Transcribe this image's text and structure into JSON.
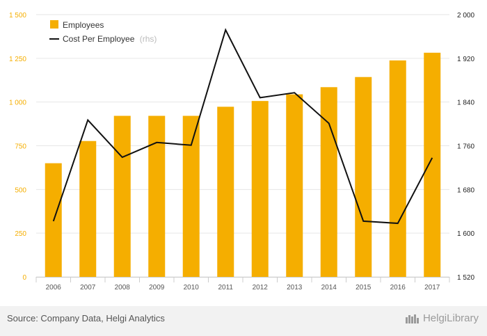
{
  "chart_data": {
    "type": "bar+line",
    "categories": [
      "2006",
      "2007",
      "2008",
      "2009",
      "2010",
      "2011",
      "2012",
      "2013",
      "2014",
      "2015",
      "2016",
      "2017"
    ],
    "series": [
      {
        "name": "Employees",
        "kind": "bar",
        "axis": "left",
        "color": "#f5ae00",
        "values": [
          650,
          777,
          921,
          921,
          921,
          973,
          1006,
          1044,
          1085,
          1143,
          1238,
          1282
        ]
      },
      {
        "name": "Cost Per Employee",
        "kind": "line",
        "axis": "right",
        "color": "#111111",
        "values": [
          1622,
          1807,
          1739,
          1766,
          1761,
          1972,
          1848,
          1857,
          1801,
          1622,
          1618,
          1738
        ]
      }
    ],
    "legend": {
      "position": "top-left",
      "items": [
        {
          "label": "Employees",
          "suffix": ""
        },
        {
          "label": "Cost Per Employee",
          "suffix": "(rhs)"
        }
      ]
    },
    "y_left": {
      "range": [
        0,
        1500
      ],
      "ticks": [
        0,
        250,
        500,
        750,
        1000,
        1250,
        1500
      ],
      "tick_labels": [
        "0",
        "250",
        "500",
        "750",
        "1 000",
        "1 250",
        "1 500"
      ],
      "color": "#f5ae00"
    },
    "y_right": {
      "range": [
        1520,
        2000
      ],
      "ticks": [
        1520,
        1600,
        1680,
        1760,
        1840,
        1920,
        2000
      ],
      "tick_labels": [
        "1 520",
        "1 600",
        "1 680",
        "1 760",
        "1 840",
        "1 920",
        "2 000"
      ],
      "color": "#222222"
    },
    "grid": true
  },
  "footer": {
    "source": "Source: Company Data, Helgi Analytics",
    "brand_a": "Helgi",
    "brand_b": "Library"
  }
}
